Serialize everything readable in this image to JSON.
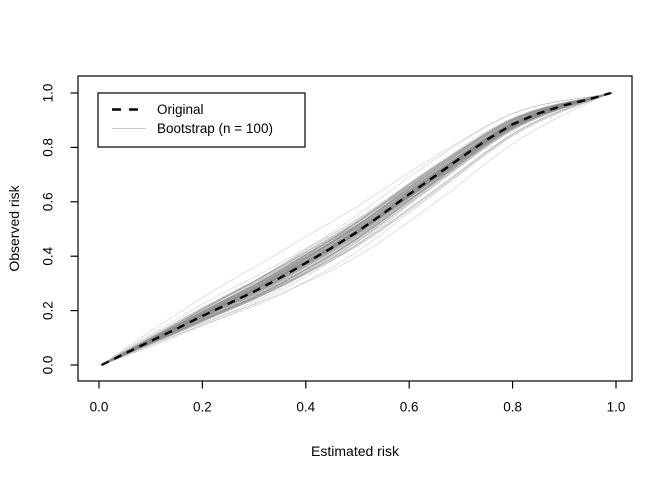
{
  "chart_data": {
    "type": "line",
    "title": "",
    "xlabel": "Estimated risk",
    "ylabel": "Observed risk",
    "xlim": [
      0,
      1
    ],
    "ylim": [
      0,
      1
    ],
    "grid": false,
    "x_ticks": [
      "0.0",
      "0.2",
      "0.4",
      "0.6",
      "0.8",
      "1.0"
    ],
    "x_tick_values": [
      0,
      0.2,
      0.4,
      0.6,
      0.8,
      1.0
    ],
    "y_ticks": [
      "0.0",
      "0.2",
      "0.4",
      "0.6",
      "0.8",
      "1.0"
    ],
    "y_tick_values": [
      0,
      0.2,
      0.4,
      0.6,
      0.8,
      1.0
    ],
    "legend": {
      "position": "topleft",
      "entries": [
        {
          "label": "Original",
          "line": "dashed",
          "color": "#000000",
          "width": 2.5
        },
        {
          "label": "Bootstrap (n = 100)",
          "line": "solid",
          "color": "#cccccc",
          "width": 1
        }
      ]
    },
    "series": [
      {
        "name": "Original",
        "style": "dashed",
        "color": "#000000",
        "width": 2.3,
        "x": [
          0.005,
          0.05,
          0.1,
          0.15,
          0.2,
          0.25,
          0.3,
          0.35,
          0.4,
          0.45,
          0.5,
          0.55,
          0.6,
          0.65,
          0.7,
          0.75,
          0.8,
          0.85,
          0.9,
          0.95,
          0.99
        ],
        "y": [
          0.0,
          0.042,
          0.088,
          0.133,
          0.18,
          0.225,
          0.27,
          0.32,
          0.375,
          0.43,
          0.49,
          0.557,
          0.628,
          0.695,
          0.762,
          0.828,
          0.885,
          0.925,
          0.955,
          0.978,
          1.0
        ]
      },
      {
        "name": "Bootstrap (n = 100)",
        "style": "bundle",
        "n": 100,
        "color": "#8c8c8c",
        "opacity": 0.3,
        "width": 0.9,
        "seed": 20240615,
        "amplitude": 0.085,
        "outliers": [
          {
            "e": 1.45,
            "amp": -0.1,
            "amp2": 0.0
          },
          {
            "e": 0.85,
            "amp": 0.095,
            "amp2": 0.01
          },
          {
            "e": 1.2,
            "amp": -0.075,
            "amp2": -0.02
          }
        ]
      }
    ]
  },
  "colors": {
    "background": "#ffffff",
    "axis": "#000000",
    "text": "#000000"
  }
}
